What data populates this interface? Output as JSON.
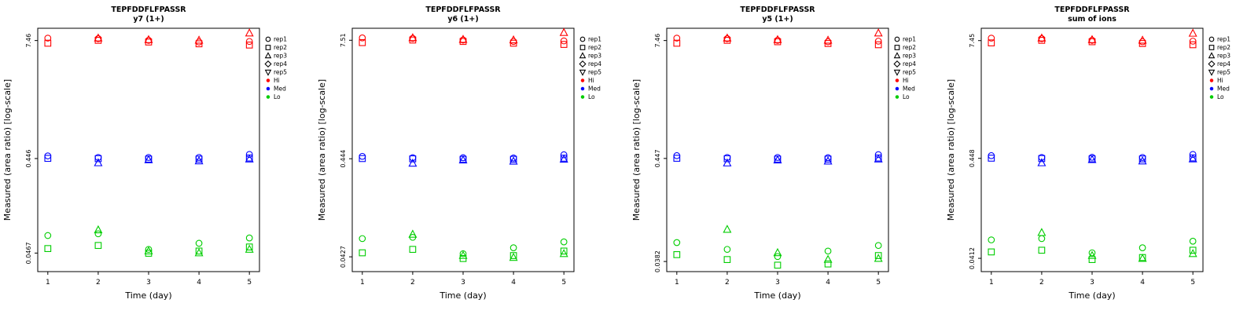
{
  "figure": {
    "background": "#ffffff",
    "peptide": "TEPFDDFLFPASSR"
  },
  "legend": {
    "reps": [
      {
        "label": "rep1",
        "marker": "circle"
      },
      {
        "label": "rep2",
        "marker": "square"
      },
      {
        "label": "rep3",
        "marker": "triangle-up"
      },
      {
        "label": "rep4",
        "marker": "diamond"
      },
      {
        "label": "rep5",
        "marker": "triangle-down"
      }
    ],
    "levels": [
      {
        "label": "Hi",
        "color": "#FF0000"
      },
      {
        "label": "Med",
        "color": "#0000FF"
      },
      {
        "label": "Lo",
        "color": "#00CD00"
      }
    ]
  },
  "chart_data": [
    {
      "type": "scatter",
      "title": "TEPFDDFLFPASSR",
      "subtitle": "y7 (1+)",
      "xlabel": "Time (day)",
      "ylabel": "Measured (area ratio) [log-scale]",
      "x_ticks": [
        "1",
        "2",
        "3",
        "4",
        "5"
      ],
      "xlim": [
        0.8,
        5.2
      ],
      "ylim": [
        0.03,
        10
      ],
      "yscale": "log",
      "y_ticks": [
        {
          "value": 7.46,
          "label": "7.46"
        },
        {
          "value": 0.446,
          "label": "0.446"
        },
        {
          "value": 0.0467,
          "label": "0.0467"
        }
      ],
      "series": [
        {
          "name": "Hi",
          "color": "#FF0000",
          "points": [
            [
              1,
              7.9,
              1
            ],
            [
              1,
              7.0,
              2
            ],
            [
              2,
              7.8,
              1
            ],
            [
              2,
              7.5,
              2
            ],
            [
              2,
              7.9,
              3
            ],
            [
              3,
              7.5,
              1
            ],
            [
              3,
              7.2,
              2
            ],
            [
              3,
              7.6,
              3
            ],
            [
              4,
              7.2,
              1
            ],
            [
              4,
              6.9,
              2
            ],
            [
              4,
              7.5,
              3
            ],
            [
              5,
              7.3,
              1
            ],
            [
              5,
              6.7,
              2
            ],
            [
              5,
              8.9,
              3
            ]
          ]
        },
        {
          "name": "Med",
          "color": "#0000FF",
          "points": [
            [
              1,
              0.475,
              1
            ],
            [
              1,
              0.448,
              2
            ],
            [
              2,
              0.458,
              1
            ],
            [
              2,
              0.445,
              2
            ],
            [
              2,
              0.402,
              3
            ],
            [
              3,
              0.458,
              1
            ],
            [
              3,
              0.44,
              2
            ],
            [
              3,
              0.432,
              3
            ],
            [
              4,
              0.458,
              1
            ],
            [
              4,
              0.44,
              2
            ],
            [
              4,
              0.421,
              3
            ],
            [
              5,
              0.492,
              1
            ],
            [
              5,
              0.452,
              2
            ],
            [
              5,
              0.44,
              3
            ]
          ]
        },
        {
          "name": "Lo",
          "color": "#00CD00",
          "points": [
            [
              1,
              0.071,
              1
            ],
            [
              1,
              0.052,
              2
            ],
            [
              2,
              0.074,
              1
            ],
            [
              2,
              0.056,
              2
            ],
            [
              2,
              0.081,
              3
            ],
            [
              3,
              0.051,
              1
            ],
            [
              3,
              0.0465,
              2
            ],
            [
              3,
              0.049,
              3
            ],
            [
              4,
              0.059,
              1
            ],
            [
              4,
              0.049,
              2
            ],
            [
              4,
              0.0468,
              3
            ],
            [
              5,
              0.067,
              1
            ],
            [
              5,
              0.054,
              2
            ],
            [
              5,
              0.051,
              3
            ]
          ]
        }
      ]
    },
    {
      "type": "scatter",
      "title": "TEPFDDFLFPASSR",
      "subtitle": "y6 (1+)",
      "xlabel": "Time (day)",
      "ylabel": "Measured (area ratio) [log-scale]",
      "x_ticks": [
        "1",
        "2",
        "3",
        "4",
        "5"
      ],
      "xlim": [
        0.8,
        5.2
      ],
      "ylim": [
        0.03,
        10
      ],
      "yscale": "log",
      "y_ticks": [
        {
          "value": 7.51,
          "label": "7.51"
        },
        {
          "value": 0.444,
          "label": "0.444"
        },
        {
          "value": 0.0427,
          "label": "0.0427"
        }
      ],
      "series": [
        {
          "name": "Hi",
          "color": "#FF0000",
          "points": [
            [
              1,
              7.95,
              1
            ],
            [
              1,
              7.1,
              2
            ],
            [
              2,
              7.85,
              1
            ],
            [
              2,
              7.55,
              2
            ],
            [
              2,
              7.95,
              3
            ],
            [
              3,
              7.55,
              1
            ],
            [
              3,
              7.3,
              2
            ],
            [
              3,
              7.65,
              3
            ],
            [
              4,
              7.3,
              1
            ],
            [
              4,
              7.0,
              2
            ],
            [
              4,
              7.55,
              3
            ],
            [
              5,
              7.4,
              1
            ],
            [
              5,
              6.8,
              2
            ],
            [
              5,
              9.0,
              3
            ]
          ]
        },
        {
          "name": "Med",
          "color": "#0000FF",
          "points": [
            [
              1,
              0.47,
              1
            ],
            [
              1,
              0.446,
              2
            ],
            [
              2,
              0.455,
              1
            ],
            [
              2,
              0.443,
              2
            ],
            [
              2,
              0.398,
              3
            ],
            [
              3,
              0.455,
              1
            ],
            [
              3,
              0.438,
              2
            ],
            [
              3,
              0.43,
              3
            ],
            [
              4,
              0.452,
              1
            ],
            [
              4,
              0.438,
              2
            ],
            [
              4,
              0.418,
              3
            ],
            [
              5,
              0.488,
              1
            ],
            [
              5,
              0.45,
              2
            ],
            [
              5,
              0.438,
              3
            ]
          ]
        },
        {
          "name": "Lo",
          "color": "#00CD00",
          "points": [
            [
              1,
              0.066,
              1
            ],
            [
              1,
              0.047,
              2
            ],
            [
              2,
              0.068,
              1
            ],
            [
              2,
              0.051,
              2
            ],
            [
              2,
              0.073,
              3
            ],
            [
              3,
              0.046,
              1
            ],
            [
              3,
              0.041,
              2
            ],
            [
              3,
              0.044,
              3
            ],
            [
              4,
              0.053,
              1
            ],
            [
              4,
              0.044,
              2
            ],
            [
              4,
              0.042,
              3
            ],
            [
              5,
              0.061,
              1
            ],
            [
              5,
              0.049,
              2
            ],
            [
              5,
              0.046,
              3
            ]
          ]
        }
      ]
    },
    {
      "type": "scatter",
      "title": "TEPFDDFLFPASSR",
      "subtitle": "y5 (1+)",
      "xlabel": "Time (day)",
      "ylabel": "Measured (area ratio) [log-scale]",
      "x_ticks": [
        "1",
        "2",
        "3",
        "4",
        "5"
      ],
      "xlim": [
        0.8,
        5.2
      ],
      "ylim": [
        0.03,
        10
      ],
      "yscale": "log",
      "y_ticks": [
        {
          "value": 7.46,
          "label": "7.46"
        },
        {
          "value": 0.447,
          "label": "0.447"
        },
        {
          "value": 0.0382,
          "label": "0.0382"
        }
      ],
      "series": [
        {
          "name": "Hi",
          "color": "#FF0000",
          "points": [
            [
              1,
              7.9,
              1
            ],
            [
              1,
              7.0,
              2
            ],
            [
              2,
              7.8,
              1
            ],
            [
              2,
              7.5,
              2
            ],
            [
              2,
              7.9,
              3
            ],
            [
              3,
              7.5,
              1
            ],
            [
              3,
              7.25,
              2
            ],
            [
              3,
              7.6,
              3
            ],
            [
              4,
              7.25,
              1
            ],
            [
              4,
              6.95,
              2
            ],
            [
              4,
              7.5,
              3
            ],
            [
              5,
              7.35,
              1
            ],
            [
              5,
              6.75,
              2
            ],
            [
              5,
              8.9,
              3
            ]
          ]
        },
        {
          "name": "Med",
          "color": "#0000FF",
          "points": [
            [
              1,
              0.478,
              1
            ],
            [
              1,
              0.449,
              2
            ],
            [
              2,
              0.458,
              1
            ],
            [
              2,
              0.444,
              2
            ],
            [
              2,
              0.4,
              3
            ],
            [
              3,
              0.458,
              1
            ],
            [
              3,
              0.44,
              2
            ],
            [
              3,
              0.43,
              3
            ],
            [
              4,
              0.455,
              1
            ],
            [
              4,
              0.44,
              2
            ],
            [
              4,
              0.419,
              3
            ],
            [
              5,
              0.49,
              1
            ],
            [
              5,
              0.452,
              2
            ],
            [
              5,
              0.44,
              3
            ]
          ]
        },
        {
          "name": "Lo",
          "color": "#00CD00",
          "points": [
            [
              1,
              0.06,
              1
            ],
            [
              1,
              0.045,
              2
            ],
            [
              2,
              0.051,
              1
            ],
            [
              2,
              0.04,
              2
            ],
            [
              2,
              0.082,
              3
            ],
            [
              3,
              0.043,
              1
            ],
            [
              3,
              0.035,
              2
            ],
            [
              3,
              0.047,
              3
            ],
            [
              4,
              0.049,
              1
            ],
            [
              4,
              0.036,
              2
            ],
            [
              4,
              0.04,
              3
            ],
            [
              5,
              0.056,
              1
            ],
            [
              5,
              0.044,
              2
            ],
            [
              5,
              0.041,
              3
            ]
          ]
        }
      ]
    },
    {
      "type": "scatter",
      "title": "TEPFDDFLFPASSR",
      "subtitle": "sum of ions",
      "xlabel": "Time (day)",
      "ylabel": "Measured (area ratio) [log-scale]",
      "x_ticks": [
        "1",
        "2",
        "3",
        "4",
        "5"
      ],
      "xlim": [
        0.8,
        5.2
      ],
      "ylim": [
        0.03,
        10
      ],
      "yscale": "log",
      "y_ticks": [
        {
          "value": 7.45,
          "label": "7.45"
        },
        {
          "value": 0.448,
          "label": "0.448"
        },
        {
          "value": 0.0412,
          "label": "0.0412"
        }
      ],
      "series": [
        {
          "name": "Hi",
          "color": "#FF0000",
          "points": [
            [
              1,
              7.9,
              1
            ],
            [
              1,
              7.05,
              2
            ],
            [
              2,
              7.8,
              1
            ],
            [
              2,
              7.5,
              2
            ],
            [
              2,
              7.9,
              3
            ],
            [
              3,
              7.5,
              1
            ],
            [
              3,
              7.25,
              2
            ],
            [
              3,
              7.6,
              3
            ],
            [
              4,
              7.25,
              1
            ],
            [
              4,
              6.95,
              2
            ],
            [
              4,
              7.5,
              3
            ],
            [
              5,
              7.35,
              1
            ],
            [
              5,
              6.75,
              2
            ],
            [
              5,
              8.85,
              3
            ]
          ]
        },
        {
          "name": "Med",
          "color": "#0000FF",
          "points": [
            [
              1,
              0.478,
              1
            ],
            [
              1,
              0.45,
              2
            ],
            [
              2,
              0.458,
              1
            ],
            [
              2,
              0.446,
              2
            ],
            [
              2,
              0.402,
              3
            ],
            [
              3,
              0.46,
              1
            ],
            [
              3,
              0.443,
              2
            ],
            [
              3,
              0.434,
              3
            ],
            [
              4,
              0.458,
              1
            ],
            [
              4,
              0.442,
              2
            ],
            [
              4,
              0.42,
              3
            ],
            [
              5,
              0.492,
              1
            ],
            [
              5,
              0.453,
              2
            ],
            [
              5,
              0.441,
              3
            ]
          ]
        },
        {
          "name": "Lo",
          "color": "#00CD00",
          "points": [
            [
              1,
              0.064,
              1
            ],
            [
              1,
              0.048,
              2
            ],
            [
              2,
              0.066,
              1
            ],
            [
              2,
              0.05,
              2
            ],
            [
              2,
              0.076,
              3
            ],
            [
              3,
              0.047,
              1
            ],
            [
              3,
              0.04,
              2
            ],
            [
              3,
              0.044,
              3
            ],
            [
              4,
              0.053,
              1
            ],
            [
              4,
              0.042,
              2
            ],
            [
              4,
              0.041,
              3
            ],
            [
              5,
              0.062,
              1
            ],
            [
              5,
              0.05,
              2
            ],
            [
              5,
              0.046,
              3
            ]
          ]
        }
      ]
    }
  ]
}
